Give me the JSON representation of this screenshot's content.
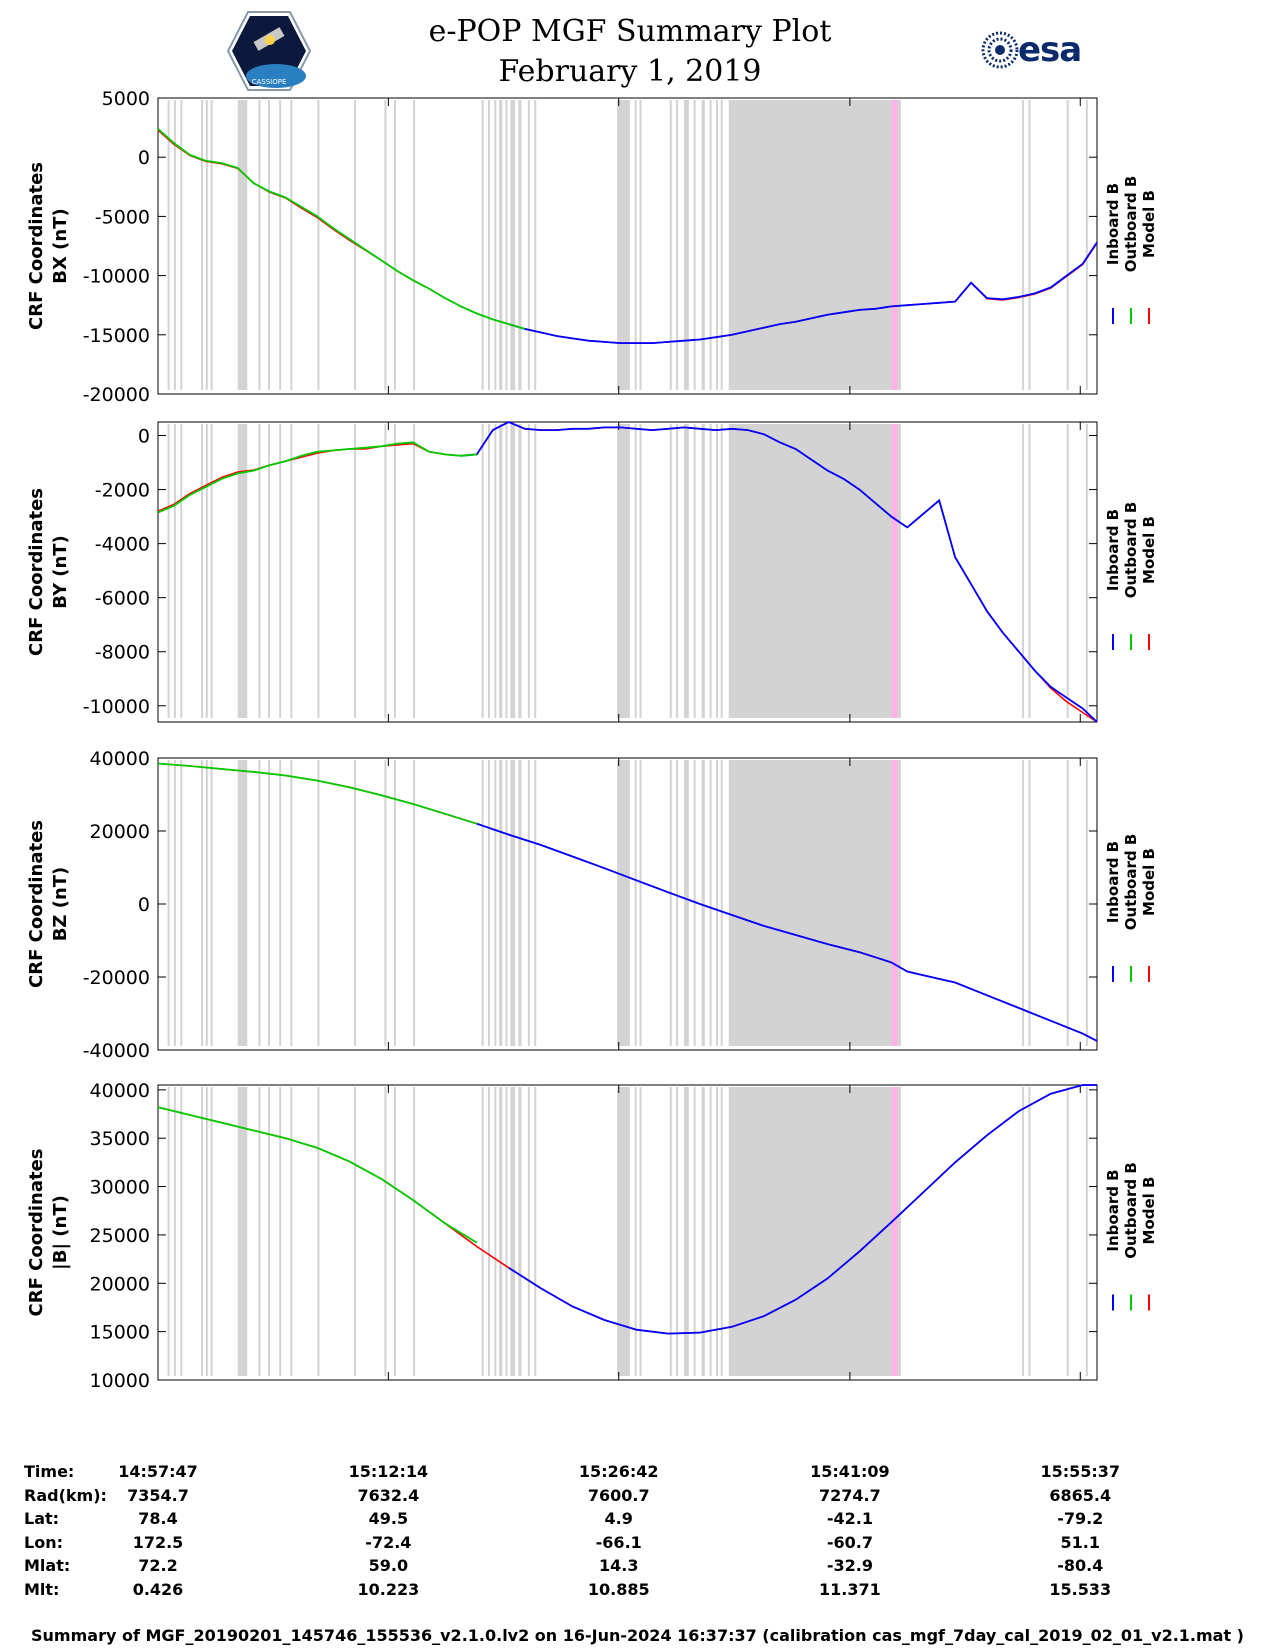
{
  "header": {
    "title": "e-POP MGF Summary Plot",
    "date": "February 1, 2019",
    "logo_left_text": "CASSIOPE",
    "logo_right_text": "esa"
  },
  "colors": {
    "inboard": "#0000ff",
    "outboard": "#00cc00",
    "model": "#ff0000",
    "shade": "#d3d3d3",
    "highlight": "#ffb3e6"
  },
  "chart_data": [
    {
      "type": "line",
      "id": "bx",
      "ylabel_line1": "CRF Coordinates",
      "ylabel_line2": "BX (nT)",
      "ylim": [
        -20000,
        5000
      ],
      "yticks": [
        5000,
        0,
        -5000,
        -10000,
        -15000,
        -20000
      ],
      "ytick_labels": [
        "5000",
        "0",
        "-5000",
        "-10000",
        "-15000",
        "-20000"
      ],
      "legend": [
        "Inboard B",
        "Outboard B",
        "Model B"
      ],
      "x_minutes": [
        0,
        1,
        2,
        3,
        4,
        5,
        6,
        7,
        8,
        9,
        10,
        11,
        12,
        13,
        14,
        15,
        16,
        17,
        18,
        19,
        20,
        21,
        22,
        23,
        24,
        25,
        26,
        27,
        28,
        29,
        30,
        31,
        32,
        33,
        34,
        35,
        36,
        37,
        38,
        39,
        40,
        41,
        42,
        43,
        44,
        45,
        46,
        47,
        48,
        49,
        50,
        51,
        52,
        53,
        54,
        55,
        56,
        57,
        58,
        58.9
      ],
      "inboard_from": 22.5,
      "series": {
        "inboard": [
          2400,
          1200,
          200,
          -300,
          -500,
          -900,
          -2200,
          -2900,
          -3400,
          -4200,
          -5000,
          -6000,
          -6900,
          -7800,
          -8700,
          -9600,
          -10400,
          -11100,
          -11900,
          -12600,
          -13200,
          -13700,
          -14100,
          -14500,
          -14800,
          -15100,
          -15300,
          -15500,
          -15600,
          -15700,
          -15700,
          -15700,
          -15600,
          -15500,
          -15400,
          -15200,
          -15000,
          -14700,
          -14400,
          -14100,
          -13900,
          -13600,
          -13300,
          -13100,
          -12900,
          -12800,
          -12600,
          -12500,
          -12400,
          -12300,
          -12200,
          -10600,
          -11900,
          -12000,
          -11800,
          -11500,
          -11000,
          -10000,
          -9000,
          -7200
        ],
        "outboard": [
          2400,
          1200,
          200,
          -300,
          -500,
          -900,
          -2200,
          -2900,
          -3400,
          -4200,
          -5000,
          -6000,
          -6900,
          -7800,
          -8700,
          -9600,
          -10400,
          -11100,
          -11900,
          -12600,
          -13200,
          -13700,
          -14100,
          -14500
        ],
        "model": [
          2300,
          1100,
          150,
          -350,
          -550,
          -950,
          -2200,
          -2950,
          -3450,
          -4300,
          -5100,
          -6100,
          -7000,
          -7850,
          -8700,
          -9600,
          -10400,
          -11100,
          -11900,
          -12600,
          -13200,
          -13700,
          -14100,
          -14500,
          -14800,
          -15100,
          -15300,
          -15500,
          -15600,
          -15700,
          -15700,
          -15700,
          -15600,
          -15500,
          -15400,
          -15200,
          -15000,
          -14700,
          -14400,
          -14100,
          -13900,
          -13600,
          -13300,
          -13100,
          -12900,
          -12800,
          -12600,
          -12500,
          -12400,
          -12300,
          -12200,
          -10600,
          -11950,
          -12050,
          -11850,
          -11550,
          -11050,
          -10050,
          -9050,
          -7250
        ]
      }
    },
    {
      "type": "line",
      "id": "by",
      "ylabel_line1": "CRF Coordinates",
      "ylabel_line2": "BY (nT)",
      "ylim": [
        -10600,
        500
      ],
      "yticks": [
        0,
        -2000,
        -4000,
        -6000,
        -8000,
        -10000
      ],
      "ytick_labels": [
        "0",
        "-2000",
        "-4000",
        "-6000",
        "-8000",
        "-10000"
      ],
      "legend": [
        "Inboard B",
        "Outboard B",
        "Model B"
      ],
      "x_minutes": [
        0,
        1,
        2,
        3,
        4,
        5,
        6,
        7,
        8,
        9,
        10,
        11,
        12,
        13,
        14,
        15,
        16,
        17,
        18,
        19,
        20,
        21,
        22,
        23,
        24,
        25,
        26,
        27,
        28,
        29,
        30,
        31,
        32,
        33,
        34,
        35,
        36,
        37,
        38,
        39,
        40,
        41,
        42,
        43,
        44,
        45,
        46,
        47,
        48,
        49,
        50,
        51,
        52,
        53,
        54,
        55,
        56,
        57,
        58,
        58.9
      ],
      "inboard_from": 20.0,
      "series": {
        "inboard": [
          -2850,
          -2600,
          -2200,
          -1900,
          -1600,
          -1400,
          -1300,
          -1100,
          -950,
          -800,
          -650,
          -550,
          -500,
          -500,
          -400,
          -350,
          -300,
          -600,
          -700,
          -750,
          -700,
          200,
          500,
          250,
          200,
          200,
          250,
          250,
          300,
          300,
          250,
          200,
          250,
          300,
          250,
          200,
          250,
          200,
          50,
          -250,
          -500,
          -900,
          -1300,
          -1600,
          -2000,
          -2500,
          -3000,
          -3400,
          -2900,
          -2400,
          -4500,
          -5500,
          -6500,
          -7300,
          -8000,
          -8700,
          -9300,
          -9700,
          -10100,
          -10600
        ],
        "outboard": [
          -2850,
          -2600,
          -2200,
          -1900,
          -1600,
          -1400,
          -1300,
          -1100,
          -950,
          -750,
          -600,
          -550,
          -500,
          -450,
          -400,
          -300,
          -250,
          -600,
          -700,
          -750,
          -700
        ],
        "model": [
          -2800,
          -2550,
          -2150,
          -1850,
          -1550,
          -1350,
          -1280,
          -1100,
          -950,
          -800,
          -650,
          -550,
          -500,
          -500,
          -400,
          -350,
          -300,
          -600,
          -700,
          -750,
          -700,
          200,
          500,
          250,
          200,
          200,
          250,
          250,
          300,
          300,
          250,
          200,
          250,
          300,
          250,
          200,
          250,
          200,
          50,
          -250,
          -500,
          -900,
          -1300,
          -1600,
          -2000,
          -2500,
          -3000,
          -3400,
          -2900,
          -2400,
          -4500,
          -5500,
          -6500,
          -7300,
          -8000,
          -8700,
          -9350,
          -9850,
          -10250,
          -10600
        ]
      }
    },
    {
      "type": "line",
      "id": "bz",
      "ylabel_line1": "CRF Coordinates",
      "ylabel_line2": "BZ (nT)",
      "ylim": [
        -40000,
        40000
      ],
      "yticks": [
        40000,
        20000,
        0,
        -20000,
        -40000
      ],
      "ytick_labels": [
        "40000",
        "20000",
        "0",
        "-20000",
        "-40000"
      ],
      "legend": [
        "Inboard B",
        "Outboard B",
        "Model B"
      ],
      "x_minutes": [
        0,
        2,
        4,
        6,
        8,
        10,
        12,
        14,
        16,
        18,
        20,
        22,
        24,
        26,
        28,
        30,
        32,
        34,
        36,
        38,
        40,
        42,
        44,
        46,
        47,
        48,
        50,
        52,
        54,
        56,
        58,
        58.9
      ],
      "inboard_from": 20.5,
      "series": {
        "inboard": [
          38500,
          37800,
          37000,
          36200,
          35200,
          33800,
          32000,
          29800,
          27400,
          24700,
          22000,
          19000,
          16200,
          13000,
          9800,
          6500,
          3200,
          0,
          -3000,
          -6000,
          -8500,
          -11000,
          -13200,
          -16000,
          -18500,
          -19500,
          -21500,
          -25000,
          -28500,
          -32000,
          -35500,
          -37500
        ],
        "outboard": [
          38500,
          37800,
          37000,
          36200,
          35200,
          33800,
          32000,
          29800,
          27400,
          24700,
          22000
        ],
        "model": [
          38500,
          37800,
          37000,
          36200,
          35200,
          33800,
          32000,
          29800,
          27400,
          24700,
          22000,
          19000,
          16200,
          13000,
          9800,
          6500,
          3200,
          0,
          -3000,
          -6000,
          -8500,
          -11000,
          -13200,
          -16000,
          -18500,
          -19500,
          -21500,
          -25000,
          -28500,
          -32000,
          -35500,
          -37500
        ]
      }
    },
    {
      "type": "line",
      "id": "bmag",
      "ylabel_line1": "CRF Coordinates",
      "ylabel_line2": "|B| (nT)",
      "ylim": [
        10000,
        40500
      ],
      "yticks": [
        40000,
        35000,
        30000,
        25000,
        20000,
        15000,
        10000
      ],
      "ytick_labels": [
        "40000",
        "35000",
        "30000",
        "25000",
        "20000",
        "15000",
        "10000"
      ],
      "legend": [
        "Inboard B",
        "Outboard B",
        "Model B"
      ],
      "x_minutes": [
        0,
        2,
        4,
        6,
        8,
        10,
        12,
        14,
        16,
        18,
        20,
        22,
        24,
        26,
        28,
        30,
        32,
        34,
        36,
        38,
        40,
        42,
        44,
        46,
        48,
        50,
        52,
        54,
        56,
        58,
        58.9
      ],
      "inboard_from": 21.5,
      "series": {
        "inboard": [
          38200,
          37400,
          36600,
          35800,
          35000,
          34000,
          32600,
          30800,
          28600,
          26200,
          23800,
          21600,
          19500,
          17600,
          16200,
          15200,
          14800,
          14900,
          15500,
          16600,
          18300,
          20500,
          23300,
          26300,
          29400,
          32500,
          35300,
          37800,
          39600,
          40500,
          40500
        ],
        "outboard": [
          38200,
          37400,
          36600,
          35800,
          35000,
          34000,
          32600,
          30800,
          28600,
          26200,
          24200
        ],
        "model": [
          38200,
          37400,
          36600,
          35800,
          35000,
          34000,
          32600,
          30800,
          28600,
          26200,
          23800,
          21600,
          19500,
          17600,
          16200,
          15200,
          14800,
          14900,
          15500,
          16600,
          18300,
          20500,
          23300,
          26300,
          29400,
          32500,
          35300,
          37800,
          39600,
          40500,
          40500
        ]
      }
    }
  ],
  "shading_minutes": [
    [
      0.6,
      0.7
    ],
    [
      1.0,
      1.1
    ],
    [
      1.4,
      1.5
    ],
    [
      2.7,
      2.8
    ],
    [
      3.0,
      3.1
    ],
    [
      3.3,
      3.4
    ],
    [
      5.0,
      5.6
    ],
    [
      6.3,
      6.4
    ],
    [
      6.9,
      7.0
    ],
    [
      7.6,
      7.7
    ],
    [
      8.3,
      8.4
    ],
    [
      10.0,
      10.1
    ],
    [
      12.3,
      12.4
    ],
    [
      14.2,
      14.3
    ],
    [
      14.8,
      14.9
    ],
    [
      16.0,
      16.1
    ],
    [
      20.3,
      20.4
    ],
    [
      20.7,
      20.8
    ],
    [
      21.1,
      21.2
    ],
    [
      21.4,
      21.6
    ],
    [
      21.8,
      21.9
    ],
    [
      22.1,
      22.4
    ],
    [
      22.6,
      22.8
    ],
    [
      23.2,
      23.3
    ],
    [
      23.6,
      23.7
    ],
    [
      28.8,
      29.6
    ],
    [
      29.9,
      30.0
    ],
    [
      30.2,
      30.3
    ],
    [
      32.1,
      32.2
    ],
    [
      32.5,
      32.6
    ],
    [
      33.0,
      33.3
    ],
    [
      33.6,
      33.7
    ],
    [
      34.1,
      34.3
    ],
    [
      34.6,
      34.7
    ],
    [
      35.0,
      35.1
    ],
    [
      35.3,
      35.4
    ],
    [
      35.8,
      46.6
    ],
    [
      54.2,
      54.3
    ],
    [
      54.6,
      54.7
    ],
    [
      57.0,
      57.1
    ],
    [
      58.2,
      58.3
    ]
  ],
  "highlight_minute": 46.2,
  "x_range_minutes": [
    0,
    58.9
  ],
  "xtick_minutes": [
    0,
    14.45,
    28.9,
    43.4,
    57.85
  ],
  "info_table": {
    "labels": [
      "Time:",
      "Rad(km):",
      "Lat:",
      "Lon:",
      "Mlat:",
      "Mlt:"
    ],
    "columns": [
      [
        "14:57:47",
        "7354.7",
        "78.4",
        "172.5",
        "72.2",
        "0.426"
      ],
      [
        "15:12:14",
        "7632.4",
        "49.5",
        "-72.4",
        "59.0",
        "10.223"
      ],
      [
        "15:26:42",
        "7600.7",
        "4.9",
        "-66.1",
        "14.3",
        "10.885"
      ],
      [
        "15:41:09",
        "7274.7",
        "-42.1",
        "-60.7",
        "-32.9",
        "11.371"
      ],
      [
        "15:55:37",
        "6865.4",
        "-79.2",
        "51.1",
        "-80.4",
        "15.533"
      ]
    ]
  },
  "footer": "Summary of MGF_20190201_145746_155536_v2.1.0.lv2 on 16-Jun-2024 16:37:37 (calibration cas_mgf_7day_cal_2019_02_01_v2.1.mat )"
}
